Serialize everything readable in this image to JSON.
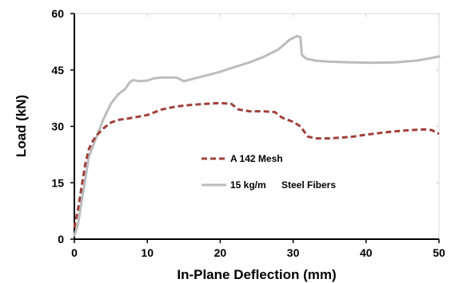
{
  "chart_data": {
    "type": "line",
    "title": "",
    "xlabel": "In-Plane Deflection (mm)",
    "ylabel": "Load (kN)",
    "xlim": [
      0,
      50
    ],
    "ylim": [
      0,
      60
    ],
    "xticks": [
      "0",
      "10",
      "20",
      "30",
      "40",
      "50"
    ],
    "yticks": [
      "0",
      "15",
      "30",
      "45",
      "60"
    ],
    "grid": false,
    "legend_position": "center",
    "series": [
      {
        "name": "A 142 Mesh",
        "color": "#a0403a",
        "style": "dashed",
        "points": [
          [
            0,
            3
          ],
          [
            0.5,
            8
          ],
          [
            1,
            14
          ],
          [
            1.5,
            20
          ],
          [
            2,
            24
          ],
          [
            2.5,
            26
          ],
          [
            3,
            27.5
          ],
          [
            4,
            29.5
          ],
          [
            5,
            31
          ],
          [
            6,
            31.7
          ],
          [
            7,
            32
          ],
          [
            8,
            32.3
          ],
          [
            10,
            33
          ],
          [
            12,
            34.5
          ],
          [
            14,
            35.3
          ],
          [
            16,
            35.7
          ],
          [
            18,
            36
          ],
          [
            20,
            36.2
          ],
          [
            21.5,
            36
          ],
          [
            22.5,
            34.5
          ],
          [
            24,
            34
          ],
          [
            26,
            34
          ],
          [
            27.5,
            33.8
          ],
          [
            28.5,
            32.3
          ],
          [
            30,
            31.2
          ],
          [
            31,
            30
          ],
          [
            32,
            27.3
          ],
          [
            33,
            26.8
          ],
          [
            35,
            26.8
          ],
          [
            38,
            27.2
          ],
          [
            40,
            27.8
          ],
          [
            43,
            28.5
          ],
          [
            46,
            29
          ],
          [
            48,
            29.2
          ],
          [
            49,
            29
          ],
          [
            50,
            28
          ]
        ]
      },
      {
        "name": "15 kg/m Steel Fibers",
        "color": "#bcbcbc",
        "style": "solid",
        "points": [
          [
            0,
            1
          ],
          [
            0.5,
            4
          ],
          [
            1,
            10
          ],
          [
            1.5,
            16
          ],
          [
            2,
            22
          ],
          [
            3,
            27
          ],
          [
            4,
            32
          ],
          [
            5,
            36
          ],
          [
            6,
            38.5
          ],
          [
            7,
            40
          ],
          [
            7.5,
            41.5
          ],
          [
            8,
            42.3
          ],
          [
            9,
            42
          ],
          [
            10,
            42.2
          ],
          [
            11,
            42.8
          ],
          [
            12,
            43
          ],
          [
            14,
            43
          ],
          [
            15,
            42
          ],
          [
            16,
            42.5
          ],
          [
            18,
            43.5
          ],
          [
            20,
            44.5
          ],
          [
            22,
            45.8
          ],
          [
            24,
            47
          ],
          [
            26,
            48.5
          ],
          [
            28,
            50.5
          ],
          [
            29.5,
            53
          ],
          [
            30.5,
            54
          ],
          [
            31,
            53.7
          ],
          [
            31.2,
            49
          ],
          [
            31.8,
            48
          ],
          [
            33,
            47.5
          ],
          [
            35,
            47.2
          ],
          [
            38,
            47
          ],
          [
            41,
            46.9
          ],
          [
            44,
            47
          ],
          [
            47,
            47.5
          ],
          [
            49,
            48.2
          ],
          [
            50,
            48.6
          ]
        ]
      }
    ]
  },
  "legend": {
    "item1": "A 142 Mesh",
    "item2_part1": "15 kg/m",
    "item2_part2": "Steel Fibers"
  }
}
